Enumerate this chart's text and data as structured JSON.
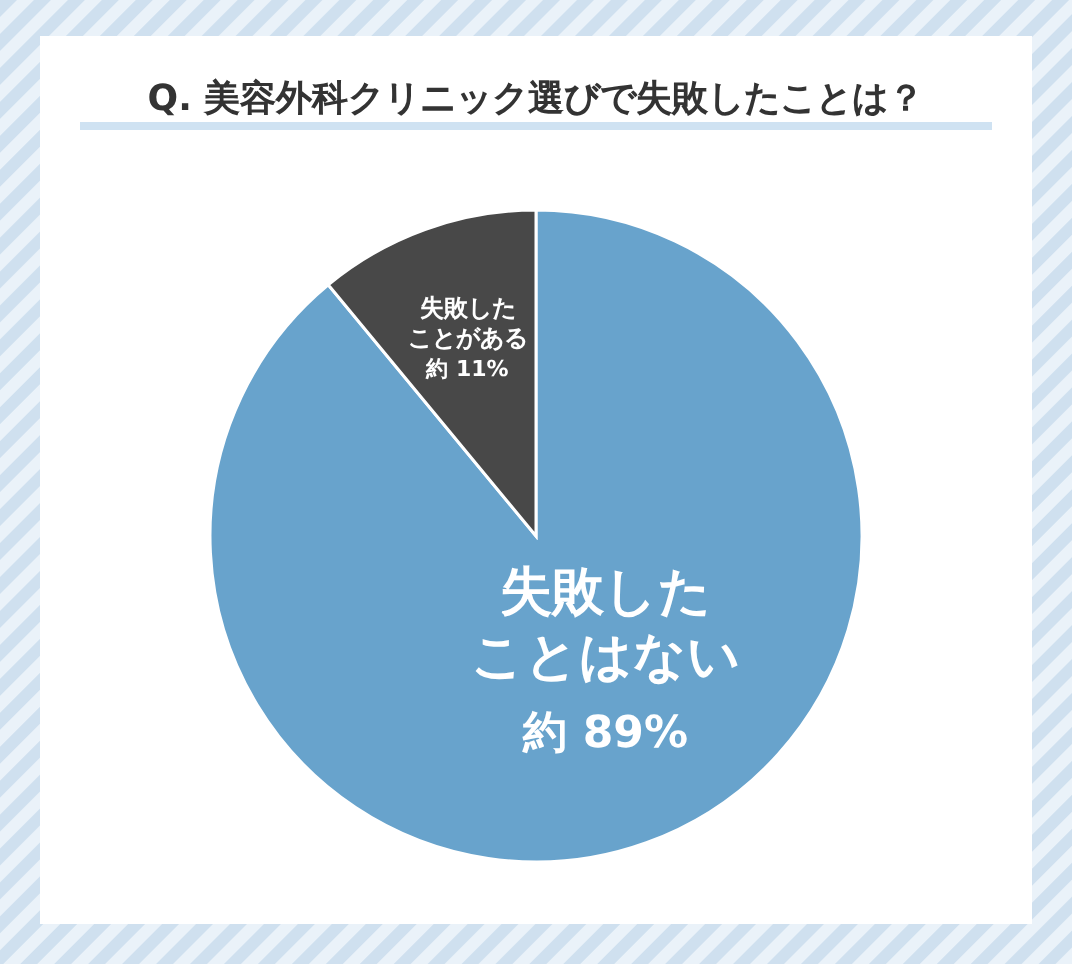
{
  "chart_data": {
    "type": "pie",
    "title": "Q. 美容外科クリニック選びで失敗したことは？",
    "categories": [
      "失敗したことはない",
      "失敗したことがある"
    ],
    "values": [
      89,
      11
    ],
    "colors": [
      "#68a3cc",
      "#484848"
    ],
    "value_labels": [
      "約 89%",
      "約 11%"
    ]
  }
}
